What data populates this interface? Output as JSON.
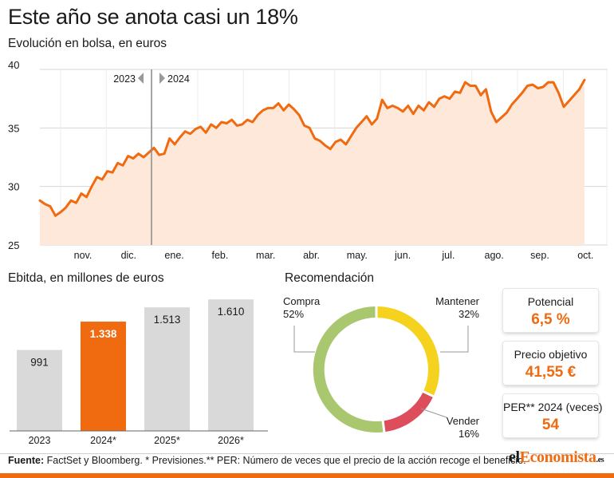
{
  "header": {
    "title": "Este año se anota casi un 18%",
    "subtitle": "Evolución en bolsa, en euros"
  },
  "colors": {
    "accent": "#f06a10",
    "area_fill": "#fde8da",
    "bar_gray": "#d9d9d9",
    "donut_compra": "#a8c76f",
    "donut_mantener": "#f5d21e",
    "donut_vender": "#dd4d5b"
  },
  "chart_data": [
    {
      "type": "area",
      "id": "stock",
      "ylim": [
        25,
        40
      ],
      "yticks": [
        "25",
        "30",
        "35",
        "40"
      ],
      "xticks": [
        "nov.",
        "dic.",
        "ene.",
        "feb.",
        "mar.",
        "abr.",
        "may.",
        "jun.",
        "jul.",
        "ago.",
        "sep.",
        "oct."
      ],
      "divider_labels": {
        "left": "2023",
        "right": "2024"
      },
      "series": [
        {
          "values": [
            28.8,
            28.5,
            28.3,
            27.5,
            27.8,
            28.2,
            28.8,
            28.6,
            29.4,
            29.1,
            30.0,
            30.8,
            30.6,
            31.3,
            31.2,
            32.0,
            31.8,
            32.6,
            32.4,
            32.8,
            32.5,
            32.9,
            33.3,
            32.7,
            32.8,
            34.1,
            33.6,
            34.2,
            34.7,
            34.5,
            34.9,
            35.1,
            34.6,
            35.3,
            35.0,
            35.5,
            35.4,
            35.7,
            35.2,
            35.3,
            35.7,
            35.5,
            36.1,
            36.5,
            36.7,
            36.7,
            37.1,
            36.5,
            37.0,
            36.6,
            36.1,
            35.2,
            35.0,
            34.1,
            33.9,
            33.5,
            33.2,
            33.8,
            34.0,
            33.6,
            34.3,
            35.0,
            35.5,
            36.0,
            35.3,
            35.8,
            37.4,
            36.7,
            36.9,
            36.7,
            36.4,
            36.9,
            36.2,
            36.9,
            36.5,
            37.2,
            36.8,
            37.5,
            37.7,
            37.5,
            38.1,
            38.0,
            38.9,
            38.6,
            38.6,
            37.8,
            38.3,
            36.4,
            35.5,
            35.9,
            36.3,
            37.0,
            37.5,
            38.0,
            38.6,
            38.7,
            38.4,
            38.5,
            38.9,
            38.9,
            38.0,
            36.8,
            37.3,
            37.8,
            38.3,
            39.1
          ]
        }
      ]
    },
    {
      "type": "bar",
      "id": "ebitda",
      "title": "Ebitda, en millones de euros",
      "categories": [
        "2023",
        "2024*",
        "2025*",
        "2026*"
      ],
      "values": [
        991,
        1338,
        1513,
        1610
      ],
      "value_labels": [
        "991",
        "1.338",
        "1.513",
        "1.610"
      ],
      "highlight_index": 1,
      "ylim": [
        0,
        1700
      ]
    },
    {
      "type": "pie",
      "id": "recomendacion",
      "title": "Recomendación",
      "slices": [
        {
          "label": "Mantener",
          "value": 32,
          "text": "32%"
        },
        {
          "label": "Vender",
          "value": 16,
          "text": "16%"
        },
        {
          "label": "Compra",
          "value": 52,
          "text": "52%"
        }
      ]
    }
  ],
  "cards": [
    {
      "label": "Potencial",
      "value": "6,5 %"
    },
    {
      "label": "Precio objetivo",
      "value": "41,55 €"
    },
    {
      "label": "PER** 2024 (veces)",
      "value": "54"
    }
  ],
  "footer": {
    "source_label": "Fuente:",
    "source_text": " FactSet y Bloomberg. * Previsiones.** PER: Número de veces que el precio de la acción recoge el beneficio.",
    "logo_pre": "el",
    "logo_accent": "Economista",
    "logo_tld": ".es"
  }
}
